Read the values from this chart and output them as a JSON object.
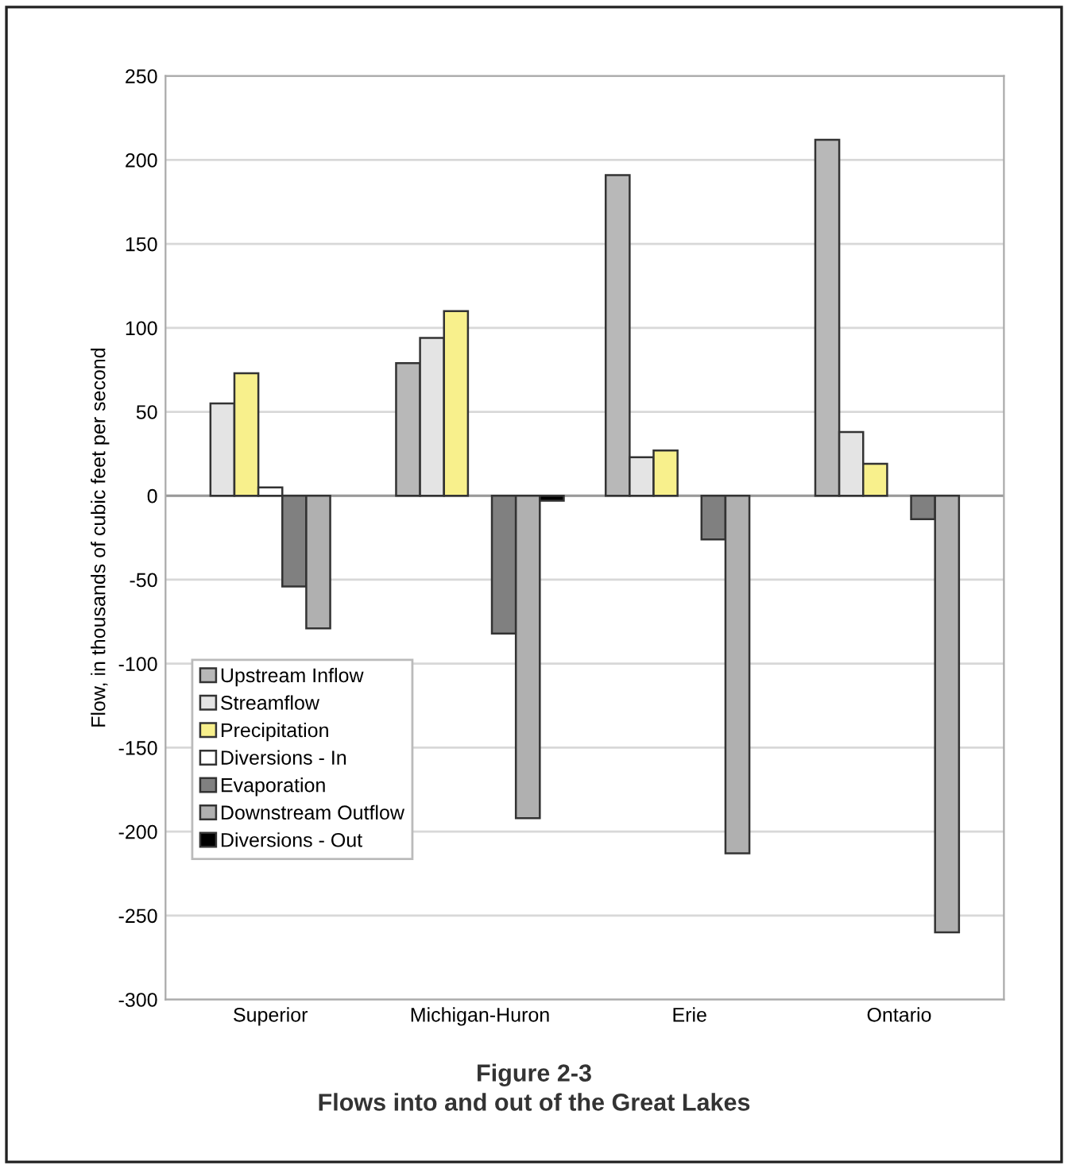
{
  "chart_data": {
    "type": "bar",
    "title": "Figure 2-3",
    "subtitle": "Flows into and out of the Great Lakes",
    "ylabel": "Flow, in thousands of cubic feet per second",
    "categories": [
      "Superior",
      "Michigan-Huron",
      "Erie",
      "Ontario"
    ],
    "series": [
      {
        "name": "Upstream Inflow",
        "color": "#b8b8b8",
        "values": [
          null,
          79,
          191,
          212
        ]
      },
      {
        "name": "Streamflow",
        "color": "#e4e4e4",
        "values": [
          55,
          94,
          23,
          38
        ]
      },
      {
        "name": "Precipitation",
        "color": "#f8f08c",
        "values": [
          73,
          110,
          27,
          19
        ]
      },
      {
        "name": "Diversions - In",
        "color": "#ffffff",
        "values": [
          5,
          null,
          null,
          null
        ]
      },
      {
        "name": "Evaporation",
        "color": "#808080",
        "values": [
          -54,
          -82,
          -26,
          -14
        ]
      },
      {
        "name": "Downstream Outflow",
        "color": "#b0b0b0",
        "values": [
          -79,
          -192,
          -213,
          -260
        ]
      },
      {
        "name": "Diversions - Out",
        "color": "#000000",
        "values": [
          null,
          -3,
          null,
          null
        ]
      }
    ],
    "ylim": [
      -300,
      250
    ],
    "yticks": [
      -300,
      -250,
      -200,
      -150,
      -100,
      -50,
      0,
      50,
      100,
      150,
      200,
      250
    ],
    "grid": "y",
    "legend": "left"
  }
}
